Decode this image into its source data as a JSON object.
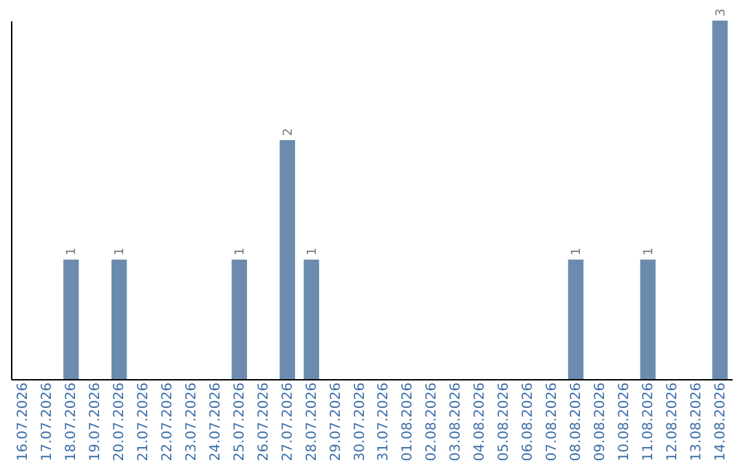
{
  "chart_data": {
    "type": "bar",
    "categories": [
      "16.07.2026",
      "17.07.2026",
      "18.07.2026",
      "19.07.2026",
      "20.07.2026",
      "21.07.2026",
      "22.07.2026",
      "23.07.2026",
      "24.07.2026",
      "25.07.2026",
      "26.07.2026",
      "27.07.2026",
      "28.07.2026",
      "29.07.2026",
      "30.07.2026",
      "31.07.2026",
      "01.08.2026",
      "02.08.2026",
      "03.08.2026",
      "04.08.2026",
      "05.08.2026",
      "06.08.2026",
      "07.08.2026",
      "08.08.2026",
      "09.08.2026",
      "10.08.2026",
      "11.08.2026",
      "12.08.2026",
      "13.08.2026",
      "14.08.2026"
    ],
    "values": [
      0,
      0,
      1,
      0,
      1,
      0,
      0,
      0,
      0,
      1,
      0,
      2,
      1,
      0,
      0,
      0,
      0,
      0,
      0,
      0,
      0,
      0,
      0,
      1,
      0,
      0,
      1,
      0,
      0,
      3
    ],
    "value_labels": [
      null,
      null,
      "1",
      null,
      "1",
      null,
      null,
      null,
      null,
      "1",
      null,
      "2",
      "1",
      null,
      null,
      null,
      null,
      null,
      null,
      null,
      null,
      null,
      null,
      "1",
      null,
      null,
      "1",
      null,
      null,
      "3"
    ],
    "color": "#6b8cae",
    "ylim": [
      0,
      3
    ],
    "grid": false
  }
}
